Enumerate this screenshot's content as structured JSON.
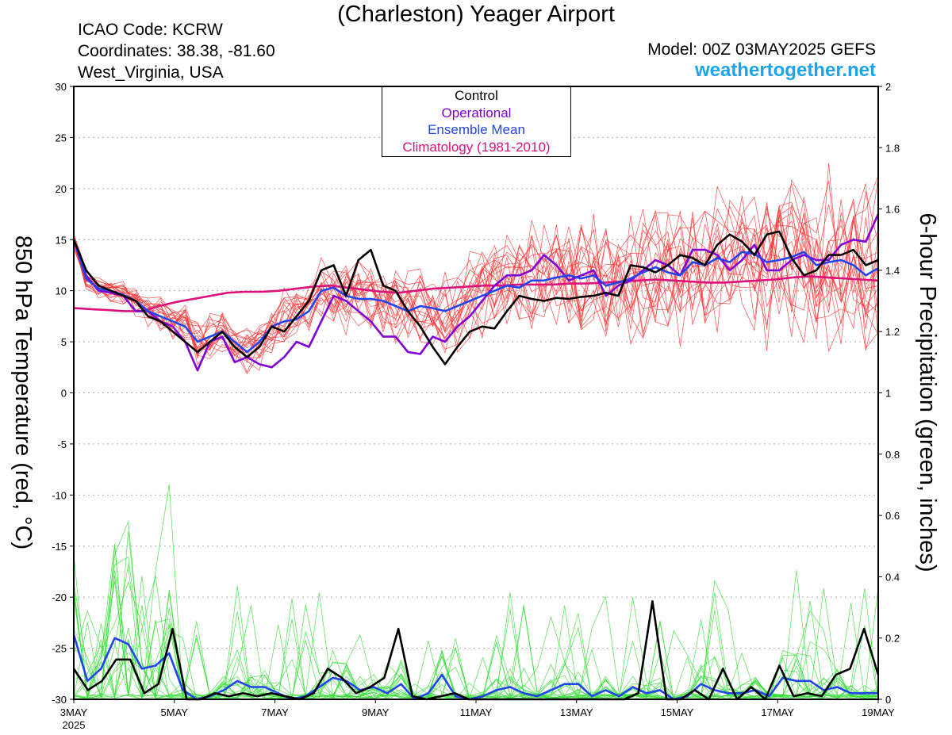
{
  "header": {
    "title": "(Charleston) Yeager Airport",
    "icao": "ICAO Code: KCRW",
    "coords": "Coordinates: 38.38, -81.60",
    "region": "West_Virginia, USA",
    "model": "Model: 00Z 03MAY2025 GEFS",
    "site": "weathertogether.net"
  },
  "legend": {
    "control": "Control",
    "operational": "Operational",
    "mean": "Ensemble Mean",
    "climo": "Climatology (1981-2010)"
  },
  "colors": {
    "control": "#000000",
    "operational": "#8000d8",
    "mean": "#2244ee",
    "climo": "#e0107a",
    "members_temp": "#ff3030",
    "members_precip": "#33dd33",
    "site": "#1ba3ee"
  },
  "chart_data": {
    "type": "line",
    "x_labels": [
      "3MAY",
      "5MAY",
      "7MAY",
      "9MAY",
      "11MAY",
      "13MAY",
      "15MAY",
      "17MAY",
      "19MAY"
    ],
    "x_label_year": "2025",
    "xlim_days": [
      0,
      16
    ],
    "y_left": {
      "label": "850 hPa Temperature (red, °C)",
      "lim": [
        -30,
        30
      ],
      "ticks": [
        30,
        25,
        20,
        15,
        10,
        5,
        0,
        -5,
        -10,
        -15,
        -20,
        -25,
        -30
      ]
    },
    "y_right": {
      "label": "6-hour Precipitation (green, inches)",
      "lim": [
        0,
        2
      ],
      "ticks": [
        "2",
        "1.8",
        "1.6",
        "1.4",
        "1.2",
        "1",
        "0.8",
        "0.6",
        "0.4",
        "0.2",
        "0"
      ]
    },
    "temp_control": [
      15,
      12,
      10.5,
      10,
      9.5,
      9,
      7.5,
      7,
      6,
      5,
      4,
      5,
      6,
      4.5,
      3.5,
      4.5,
      6.5,
      6,
      7.5,
      9,
      12,
      12.5,
      9.5,
      13,
      14,
      10.5,
      10,
      8,
      6.5,
      4.5,
      2.8,
      4.5,
      6,
      6.5,
      6.3,
      8,
      9.5,
      9.2,
      9,
      9.3,
      9.2,
      9.4,
      9.5,
      9.8,
      9.5,
      12.5,
      12.3,
      11.8,
      12.5,
      13.5,
      13.2,
      12.5,
      14.5,
      15.5,
      14.8,
      13.5,
      15.5,
      15.8,
      13.2,
      11.5,
      12,
      13.5,
      13.5,
      14,
      12.5,
      13
    ],
    "temp_operational": [
      15,
      11.5,
      10,
      9.8,
      9.5,
      8,
      8,
      7,
      6.5,
      5,
      2.2,
      5,
      5.5,
      3,
      3.5,
      2.8,
      2.5,
      3.5,
      5,
      4.5,
      7,
      9.5,
      9,
      8,
      7,
      5.5,
      5.5,
      4,
      3.8,
      5.5,
      5,
      6.5,
      7.5,
      9,
      10.5,
      11.5,
      11.5,
      12,
      13.5,
      12.5,
      11,
      11.5,
      12,
      9.5,
      10.5,
      11,
      12,
      13,
      12.5,
      11.5,
      14,
      14,
      13.5,
      12,
      13,
      14.5,
      12,
      12,
      13,
      13.5,
      13,
      13,
      14.5,
      15,
      14.8,
      17.5
    ],
    "temp_mean": [
      15,
      11.2,
      10.2,
      10,
      9.6,
      9,
      8,
      7.5,
      7,
      6.5,
      5,
      5.5,
      6,
      5,
      4,
      5,
      6.5,
      7,
      7.2,
      8,
      10,
      10.3,
      9.5,
      9.2,
      9.2,
      9,
      8.5,
      8,
      8.5,
      8.3,
      8,
      8.5,
      9,
      9.5,
      10,
      10.5,
      10.3,
      11,
      11,
      11.3,
      11.5,
      11.2,
      11.5,
      10.5,
      10.8,
      11.2,
      11.8,
      12.3,
      11.8,
      11.5,
      12.8,
      12.5,
      13.2,
      12.8,
      13.8,
      13.6,
      12.8,
      13,
      13.3,
      13.8,
      12.5,
      12.8,
      13,
      12.5,
      11.5,
      12.2
    ],
    "temp_climo": [
      8.3,
      8.2,
      8.1,
      8,
      8,
      8.5,
      8.9,
      9.2,
      9.5,
      9.8,
      9.9,
      9.9,
      10,
      10.2,
      10.4,
      10.5,
      10.3,
      10.1,
      9.9,
      9.8,
      10,
      10.2,
      10.3,
      10.4,
      10.5,
      10.5,
      10.6,
      10.6,
      10.6,
      10.7,
      10.7,
      10.8,
      10.9,
      11,
      11.1,
      11,
      10.9,
      10.8,
      10.8,
      10.9,
      11,
      11.1,
      11.3,
      11.4,
      11.3,
      11.2,
      11.1,
      11
    ],
    "precip_control": [
      0.1,
      0.03,
      0.06,
      0.13,
      0.13,
      0.02,
      0.05,
      0.23,
      0,
      0,
      0.02,
      0.01,
      0.02,
      0.01,
      0.02,
      0.01,
      0,
      0.02,
      0.1,
      0.07,
      0.02,
      0.04,
      0.07,
      0.23,
      0.01,
      0,
      0.01,
      0.02,
      0,
      0,
      0,
      0,
      0,
      0,
      0,
      0,
      0,
      0,
      0,
      0,
      0.02,
      0.32,
      0,
      0,
      0.03,
      0,
      0.1,
      0,
      0.04,
      0,
      0.11,
      0.01,
      0.02,
      0.01,
      0.08,
      0.1,
      0.23,
      0.08
    ],
    "precip_mean": [
      0.21,
      0.06,
      0.1,
      0.2,
      0.18,
      0.1,
      0.11,
      0.15,
      0.03,
      0,
      0.01,
      0.03,
      0.06,
      0.04,
      0.04,
      0.02,
      0,
      0.01,
      0.04,
      0.07,
      0.06,
      0.03,
      0.04,
      0.02,
      0.05,
      0,
      0.02,
      0.08,
      0.01,
      0,
      0.01,
      0.03,
      0.04,
      0.02,
      0.01,
      0.03,
      0.05,
      0.05,
      0.01,
      0.03,
      0.01,
      0.04,
      0.02,
      0.03,
      0,
      0.01,
      0.05,
      0.03,
      0.02,
      0.02,
      0.03,
      0.01,
      0.07,
      0.06,
      0.06,
      0.03,
      0.04,
      0.02,
      0.02,
      0.02
    ]
  }
}
